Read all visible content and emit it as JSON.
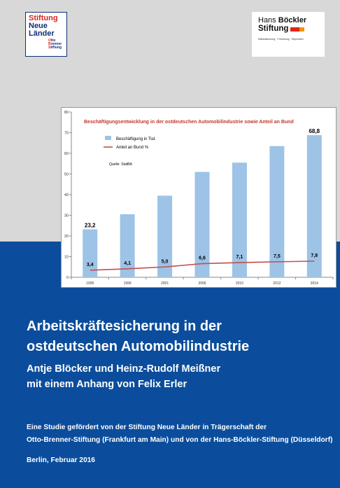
{
  "logos": {
    "snl": {
      "lines": [
        "Stiftung",
        "Neue",
        "Länder"
      ],
      "small": [
        {
          "first": "O",
          "rest": "tto"
        },
        {
          "first": "B",
          "rest": "renner"
        },
        {
          "first": "S",
          "rest": "tiftung"
        }
      ]
    },
    "hbs": {
      "line1_a": "Hans ",
      "line1_b": "Böckler",
      "line2": "Stiftung",
      "tagline": "Mitbestimmung · Forschung · Stipendien"
    }
  },
  "chart_data": {
    "type": "bar",
    "title": "Beschäftigungsentwicklung in der ostdeutschen Automobilindustrie sowie Anteil an Bund",
    "categories": [
      "1995",
      "1999",
      "2001",
      "2006",
      "2010",
      "2012",
      "2014"
    ],
    "series": [
      {
        "name": "Beschäftigung in Tsd.",
        "kind": "bar",
        "color": "#9dc3e6",
        "values": [
          23.2,
          30.5,
          39.5,
          51.0,
          55.5,
          63.5,
          68.8
        ],
        "labels": [
          "23,2",
          "",
          "",
          "",
          "",
          "",
          "68,8"
        ]
      },
      {
        "name": "Anteil an Bund %",
        "kind": "line",
        "color": "#c0504d",
        "values": [
          3.4,
          4.1,
          5.0,
          6.6,
          7.1,
          7.5,
          7.8
        ],
        "labels": [
          "3,4",
          "4,1",
          "5,0",
          "6,6",
          "7,1",
          "7,5",
          "7,8"
        ]
      }
    ],
    "ylim": [
      0,
      80
    ],
    "yticks": [
      "0",
      "10",
      "20",
      "30",
      "40",
      "50",
      "60",
      "70",
      "80"
    ],
    "source": "Quelle: StatBA",
    "legend_position": "top-left",
    "grid": false
  },
  "cover": {
    "title_line1": "Arbeitskräftesicherung in der",
    "title_line2": "ostdeutschen Automobilindustrie",
    "authors_line1": "Antje Blöcker und Heinz-Rudolf Meißner",
    "authors_line2": "mit einem Anhang von Felix Erler",
    "study_line1": "Eine Studie gefördert von der Stiftung Neue Länder in Trägerschaft der",
    "study_line2": "Otto-Brenner-Stiftung (Frankfurt am Main) und von der Hans-Böckler-Stiftung (Düsseldorf)",
    "date": "Berlin, Februar 2016"
  },
  "colors": {
    "blue_band": "#0b4d9c",
    "grey_band": "#d8d8d8",
    "title_red": "#c0392b"
  }
}
